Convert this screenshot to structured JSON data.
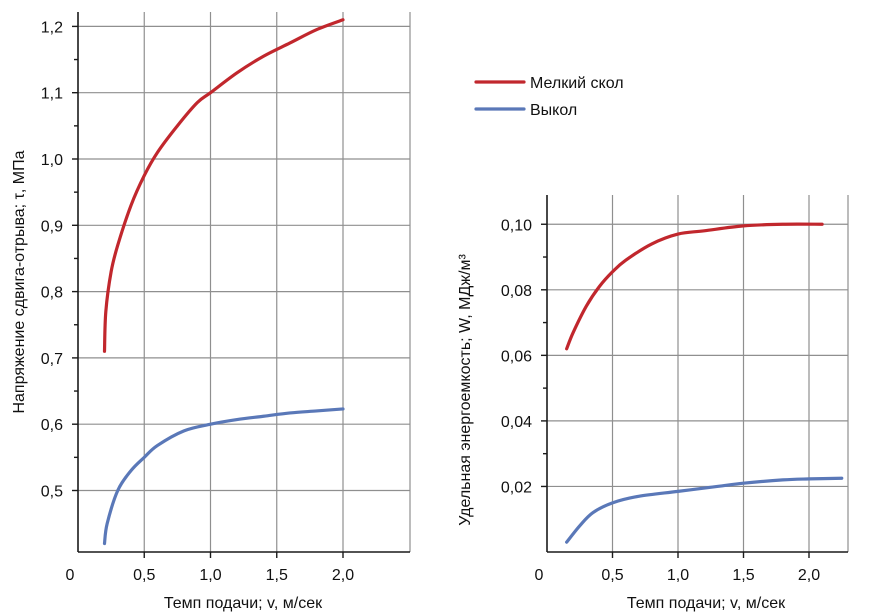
{
  "chart_data": [
    {
      "type": "line",
      "xlabel": "Темп подачи; v, м/сек",
      "ylabel": "Напряжение сдвига-отрыва; τ, МПа",
      "xlim": [
        0,
        2.5
      ],
      "ylim": [
        0.4,
        1.25
      ],
      "x_ticks": [
        {
          "value": 0,
          "label": "0"
        },
        {
          "value": 0.5,
          "label": "0,5"
        },
        {
          "value": 1.0,
          "label": "1,0"
        },
        {
          "value": 1.5,
          "label": "1,5"
        },
        {
          "value": 2.0,
          "label": "2,0"
        }
      ],
      "y_ticks": [
        {
          "value": 0.5,
          "label": "0,5"
        },
        {
          "value": 0.6,
          "label": "0,6"
        },
        {
          "value": 0.7,
          "label": "0,7"
        },
        {
          "value": 0.8,
          "label": "0,8"
        },
        {
          "value": 0.9,
          "label": "0,9"
        },
        {
          "value": 1.0,
          "label": "1,0"
        },
        {
          "value": 1.1,
          "label": "1,1"
        },
        {
          "value": 1.2,
          "label": "1,2"
        }
      ],
      "grid": true,
      "series": [
        {
          "name": "Мелкий скол",
          "color": "#c1272d",
          "points": [
            [
              0.2,
              0.71
            ],
            [
              0.21,
              0.77
            ],
            [
              0.25,
              0.83
            ],
            [
              0.3,
              0.87
            ],
            [
              0.4,
              0.93
            ],
            [
              0.5,
              0.975
            ],
            [
              0.6,
              1.01
            ],
            [
              0.75,
              1.05
            ],
            [
              0.9,
              1.085
            ],
            [
              1.0,
              1.1
            ],
            [
              1.2,
              1.13
            ],
            [
              1.4,
              1.155
            ],
            [
              1.6,
              1.175
            ],
            [
              1.8,
              1.195
            ],
            [
              2.0,
              1.21
            ]
          ]
        },
        {
          "name": "Выкол",
          "color": "#5a78b8",
          "points": [
            [
              0.2,
              0.42
            ],
            [
              0.22,
              0.45
            ],
            [
              0.3,
              0.5
            ],
            [
              0.4,
              0.53
            ],
            [
              0.5,
              0.55
            ],
            [
              0.6,
              0.568
            ],
            [
              0.8,
              0.59
            ],
            [
              1.0,
              0.6
            ],
            [
              1.2,
              0.607
            ],
            [
              1.4,
              0.612
            ],
            [
              1.6,
              0.617
            ],
            [
              1.8,
              0.62
            ],
            [
              2.0,
              0.623
            ]
          ]
        }
      ]
    },
    {
      "type": "line",
      "xlabel": "Темп подачи; v, м/сек",
      "ylabel": "Удельная энергоемкость; W, МДж/м³",
      "xlim": [
        0,
        2.5
      ],
      "ylim": [
        0,
        0.104
      ],
      "x_ticks": [
        {
          "value": 0,
          "label": "0"
        },
        {
          "value": 0.5,
          "label": "0,5"
        },
        {
          "value": 1.0,
          "label": "1,0"
        },
        {
          "value": 1.5,
          "label": "1,5"
        },
        {
          "value": 2.0,
          "label": "2,0"
        }
      ],
      "y_ticks": [
        {
          "value": 0.02,
          "label": "0,02"
        },
        {
          "value": 0.04,
          "label": "0,04"
        },
        {
          "value": 0.06,
          "label": "0,06"
        },
        {
          "value": 0.08,
          "label": "0,08"
        },
        {
          "value": 0.1,
          "label": "0,10"
        }
      ],
      "grid": true,
      "series": [
        {
          "name": "Мелкий скол",
          "color": "#c1272d",
          "points": [
            [
              0.15,
              0.062
            ],
            [
              0.2,
              0.067
            ],
            [
              0.3,
              0.075
            ],
            [
              0.4,
              0.081
            ],
            [
              0.5,
              0.0855
            ],
            [
              0.6,
              0.089
            ],
            [
              0.8,
              0.094
            ],
            [
              1.0,
              0.097
            ],
            [
              1.2,
              0.098
            ],
            [
              1.5,
              0.0995
            ],
            [
              1.8,
              0.1
            ],
            [
              2.1,
              0.1
            ]
          ]
        },
        {
          "name": "Выкол",
          "color": "#5a78b8",
          "points": [
            [
              0.15,
              0.003
            ],
            [
              0.25,
              0.008
            ],
            [
              0.35,
              0.012
            ],
            [
              0.5,
              0.015
            ],
            [
              0.7,
              0.017
            ],
            [
              1.0,
              0.0185
            ],
            [
              1.3,
              0.02
            ],
            [
              1.5,
              0.021
            ],
            [
              1.8,
              0.022
            ],
            [
              2.0,
              0.0223
            ],
            [
              2.25,
              0.0225
            ]
          ]
        }
      ]
    }
  ],
  "legend": {
    "position": "top-right",
    "items": [
      {
        "label": "Мелкий скол",
        "color": "#c1272d"
      },
      {
        "label": "Выкол",
        "color": "#5a78b8"
      }
    ]
  }
}
